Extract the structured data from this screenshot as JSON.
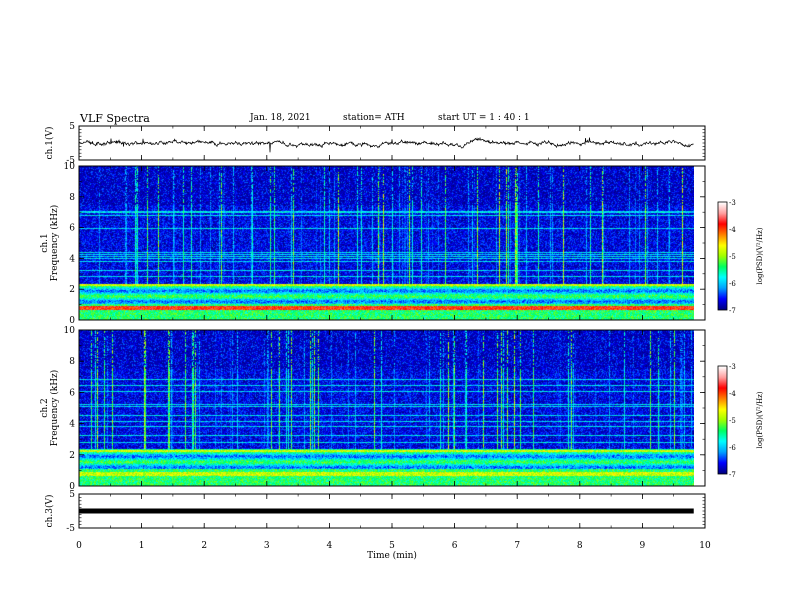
{
  "header": {
    "title": "VLF Spectra",
    "date": "Jan. 18, 2021",
    "station": "station= ATH",
    "start": "start  UT =   1 : 40 : 1"
  },
  "colors": {
    "colormap": [
      "#000080",
      "#0000ff",
      "#00a0ff",
      "#00ffff",
      "#00ff60",
      "#a0ff00",
      "#ffff00",
      "#ff8000",
      "#ff0000",
      "#ffa0a0",
      "#ffffff"
    ],
    "trace": "#000000",
    "frame": "#000000"
  },
  "chart_data": [
    {
      "type": "line",
      "ylabel": "ch.1(V)",
      "ylim": [
        -5,
        5
      ],
      "yticks": [
        "5",
        "-5"
      ],
      "xlim": [
        0,
        10
      ],
      "description_values": {
        "mean": 0,
        "amplitude_approx": 1
      }
    },
    {
      "type": "heatmap",
      "ylabel_line1": "ch.1",
      "ylabel_line2": "Frequency  (kHz)",
      "ylim": [
        0,
        10
      ],
      "yticks": [
        "0",
        "2",
        "4",
        "6",
        "8",
        "10"
      ],
      "xlim": [
        0,
        10
      ],
      "colorbar": {
        "label": "log(PSD)(V²/Hz)",
        "range": [
          -7,
          -3
        ],
        "ticks": [
          "-3",
          "-4",
          "-5",
          "-6",
          "-7"
        ]
      }
    },
    {
      "type": "heatmap",
      "ylabel_line1": "ch.2",
      "ylabel_line2": "Frequency  (kHz)",
      "ylim": [
        0,
        10
      ],
      "yticks": [
        "0",
        "2",
        "4",
        "6",
        "8",
        "10"
      ],
      "xlim": [
        0,
        10
      ],
      "colorbar": {
        "label": "log(PSD)(V²/Hz)",
        "range": [
          -7,
          -3
        ],
        "ticks": [
          "-3",
          "-4",
          "-5",
          "-6",
          "-7"
        ]
      }
    },
    {
      "type": "line",
      "ylabel": "ch.3(V)",
      "ylim": [
        -5,
        5
      ],
      "yticks": [
        "5",
        "-5"
      ],
      "xlim": [
        0,
        10
      ],
      "xlabel": "Time  (min)",
      "xticks": [
        "0",
        "1",
        "2",
        "3",
        "4",
        "5",
        "6",
        "7",
        "8",
        "9",
        "10"
      ],
      "level": 0
    }
  ]
}
